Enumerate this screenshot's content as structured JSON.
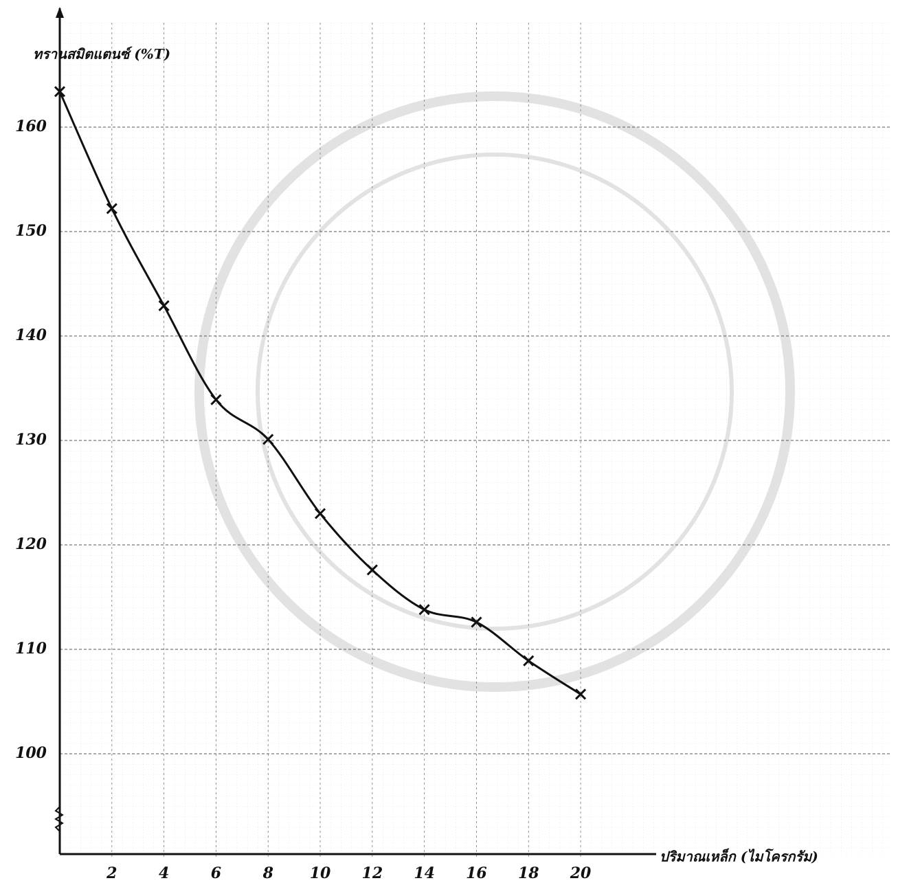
{
  "chart_data": {
    "type": "scatter",
    "y_label": "ทรานสมิตแตนซ์ (%T)",
    "x_label": "ปริมาณเหล็ก (ไมโครกรัม)",
    "x": [
      0,
      2,
      4,
      6,
      8,
      10,
      12,
      14,
      16,
      18,
      20
    ],
    "series": [
      {
        "color": "#111111",
        "marker": "x",
        "curve": true,
        "values": [
          163.4,
          152.2,
          142.9,
          133.9,
          130.1,
          123.0,
          117.6,
          113.8,
          112.6,
          108.9,
          105.7
        ]
      }
    ],
    "xlim": [
      0,
      31
    ],
    "ylim": [
      90,
      170
    ],
    "xticks": [
      2,
      4,
      6,
      8,
      10,
      12,
      14,
      16,
      18,
      20
    ],
    "yticks": [
      100,
      110,
      120,
      130,
      140,
      150,
      160
    ],
    "grid": true
  }
}
